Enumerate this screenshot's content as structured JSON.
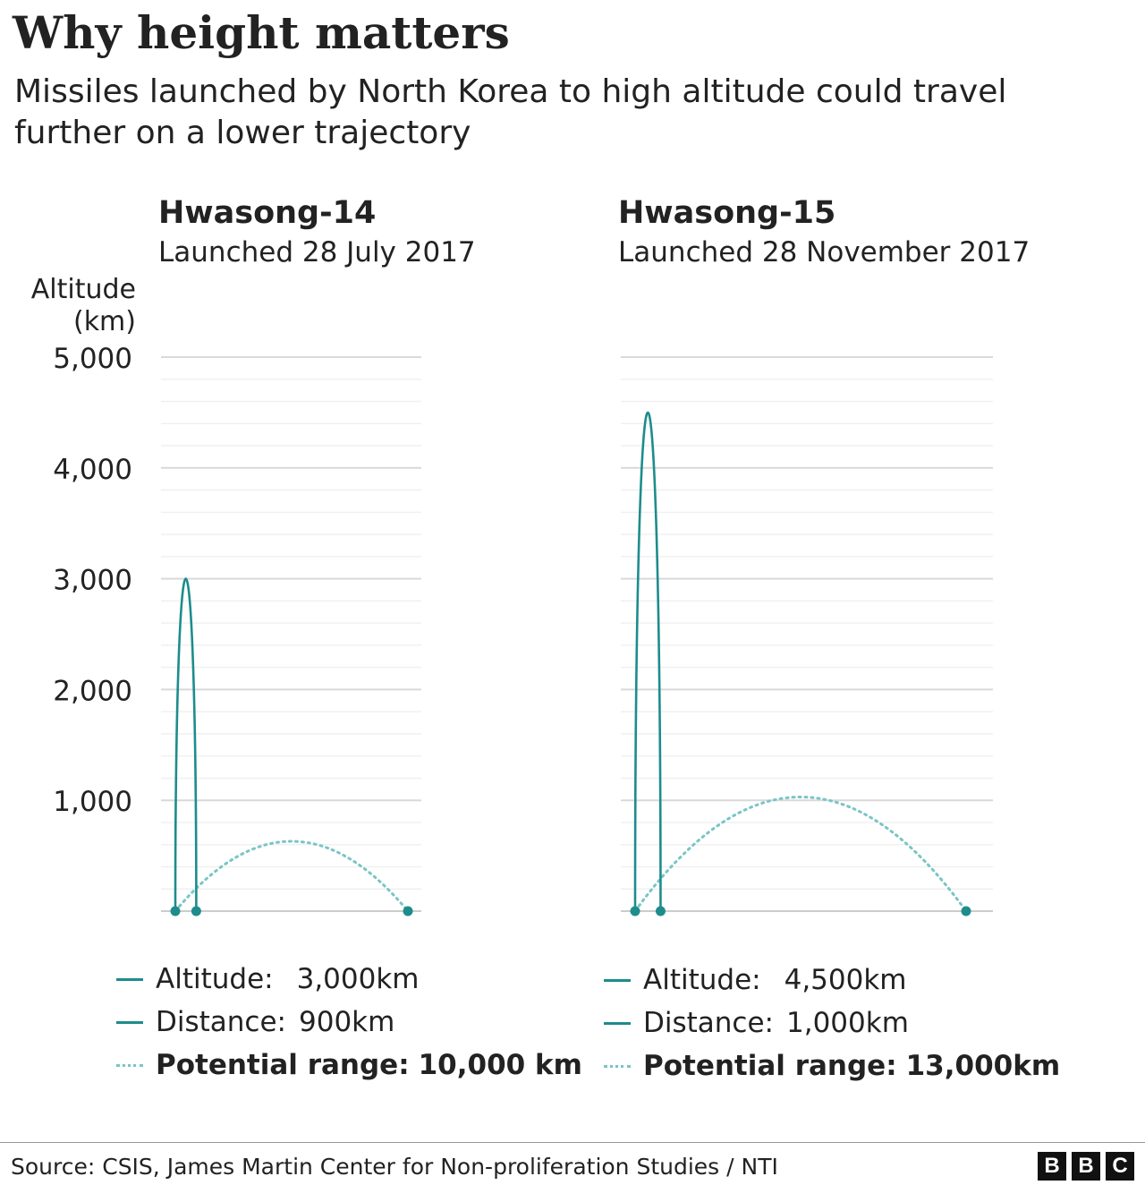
{
  "title": "Why height matters",
  "subtitle": "Missiles launched by North Korea to high altitude could travel further on a lower trajectory",
  "y_axis_label": [
    "Altitude",
    "(km)"
  ],
  "source": "Source: CSIS, James Martin Center for Non-proliferation Studies / NTI",
  "logo": [
    "B",
    "B",
    "C"
  ],
  "colors": {
    "trajectory": "#1e8c8c",
    "potential": "#7ac5c5",
    "grid": "#d9d9d9",
    "text": "#222222"
  },
  "chart_data": [
    {
      "type": "line",
      "title": "Hwasong-14",
      "subtitle": "Launched 28 July 2017",
      "ylim": [
        0,
        5000
      ],
      "y_ticks": [
        1000,
        2000,
        3000,
        4000,
        5000
      ],
      "y_tick_labels": [
        "1,000",
        "2,000",
        "3,000",
        "4,000",
        "5,000"
      ],
      "grid": true,
      "series": [
        {
          "kind": "actual",
          "altitude_km": 3000,
          "distance_km": 900
        },
        {
          "kind": "potential",
          "range_km": 10000,
          "peak_altitude_km": 630
        }
      ],
      "legend": [
        {
          "label": "Altitude:",
          "value": "3,000km",
          "style": "solid",
          "bold": false
        },
        {
          "label": "Distance:",
          "value": "900km",
          "style": "solid",
          "bold": false
        },
        {
          "label": "Potential range:",
          "value": "10,000 km",
          "style": "dotted",
          "bold": true
        }
      ]
    },
    {
      "type": "line",
      "title": "Hwasong-15",
      "subtitle": "Launched 28 November 2017",
      "ylim": [
        0,
        5000
      ],
      "y_ticks": [
        1000,
        2000,
        3000,
        4000,
        5000
      ],
      "grid": true,
      "series": [
        {
          "kind": "actual",
          "altitude_km": 4500,
          "distance_km": 1000
        },
        {
          "kind": "potential",
          "range_km": 13000,
          "peak_altitude_km": 1030
        }
      ],
      "legend": [
        {
          "label": "Altitude:",
          "value": "4,500km",
          "style": "solid",
          "bold": false
        },
        {
          "label": "Distance:",
          "value": "1,000km",
          "style": "solid",
          "bold": false
        },
        {
          "label": "Potential range:",
          "value": "13,000km",
          "style": "dotted",
          "bold": true
        }
      ]
    }
  ]
}
